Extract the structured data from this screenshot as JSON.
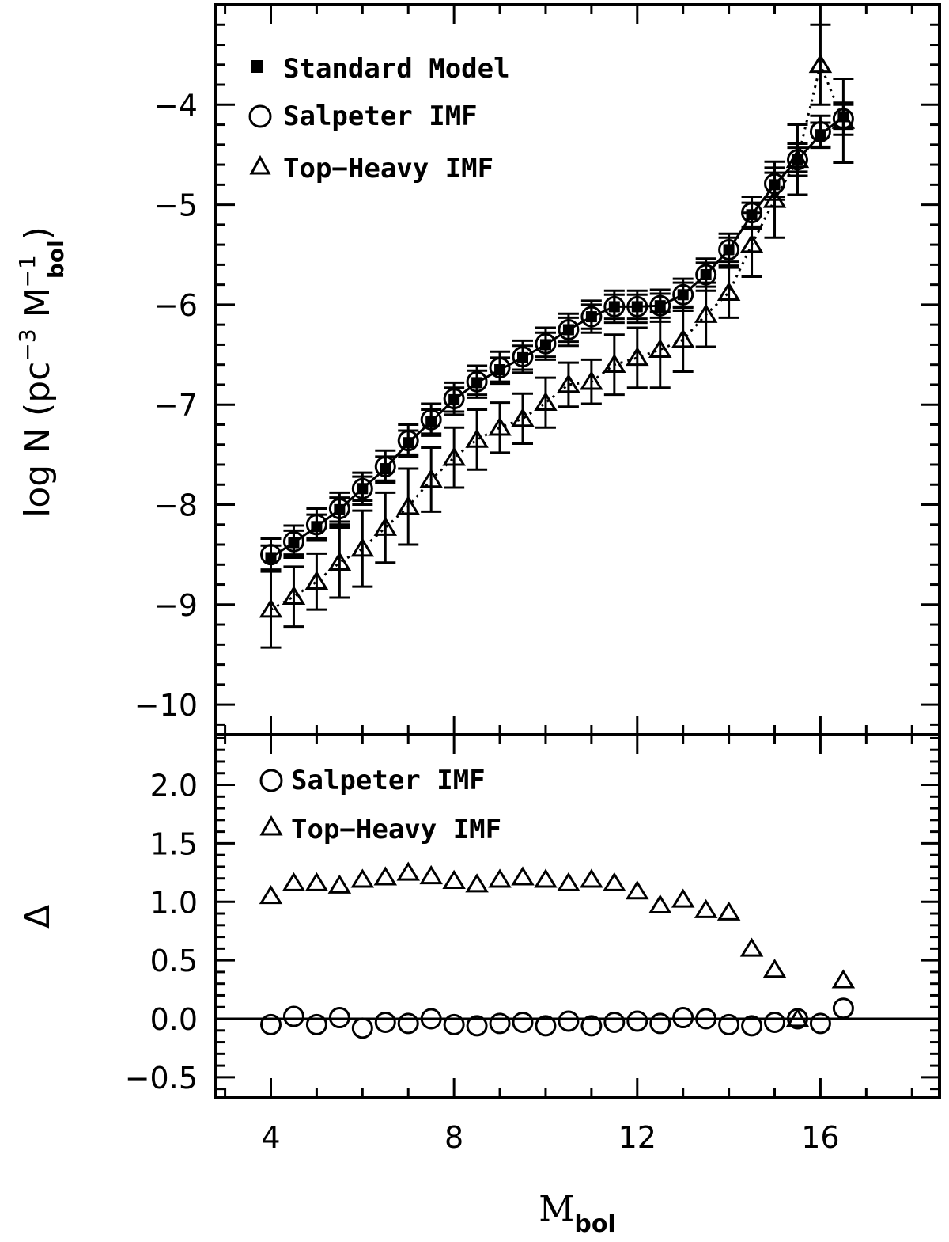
{
  "chart_data": [
    {
      "type": "scatter",
      "panel": "top",
      "title": "",
      "xlabel": "M",
      "xlabel_sub": "bol",
      "ylabel": "log N (pc",
      "ylabel_sup1": "−3",
      "ylabel_mid": " M",
      "ylabel_sup2": "−1",
      "ylabel_sub": "bol",
      "ylabel_end": ")",
      "xlim": [
        2.8,
        18.6
      ],
      "ylim": [
        -10.3,
        -3.0
      ],
      "x_ticks": [
        4,
        8,
        12,
        16
      ],
      "x_tick_labels": [
        "4",
        "8",
        "12",
        "16"
      ],
      "y_ticks": [
        -10,
        -9,
        -8,
        -7,
        -6,
        -5,
        -4
      ],
      "y_tick_labels": [
        "−10",
        "−9",
        "−8",
        "−7",
        "−6",
        "−5",
        "−4"
      ],
      "legend_position": "top-left",
      "legend": [
        "Standard Model",
        "Salpeter IMF",
        "Top−Heavy IMF"
      ],
      "x": [
        4.0,
        4.5,
        5.0,
        5.5,
        6.0,
        6.5,
        7.0,
        7.5,
        8.0,
        8.5,
        9.0,
        9.5,
        10.0,
        10.5,
        11.0,
        11.5,
        12.0,
        12.5,
        13.0,
        13.5,
        14.0,
        14.5,
        15.0,
        15.5,
        16.0,
        16.5
      ],
      "series": [
        {
          "name": "Standard Model",
          "marker": "filled-square",
          "line": "solid",
          "values": [
            -8.53,
            -8.38,
            -8.22,
            -8.05,
            -7.84,
            -7.64,
            -7.38,
            -7.17,
            -6.95,
            -6.78,
            -6.65,
            -6.53,
            -6.4,
            -6.25,
            -6.12,
            -6.02,
            -6.02,
            -6.01,
            -5.9,
            -5.7,
            -5.45,
            -5.1,
            -4.8,
            -4.55,
            -4.3,
            -4.12
          ],
          "err": [
            0.12,
            0.12,
            0.12,
            0.12,
            0.12,
            0.12,
            0.12,
            0.12,
            0.12,
            0.12,
            0.12,
            0.12,
            0.12,
            0.12,
            0.12,
            0.12,
            0.12,
            0.12,
            0.12,
            0.12,
            0.12,
            0.12,
            0.12,
            0.12,
            0.12,
            0.12
          ]
        },
        {
          "name": "Salpeter IMF",
          "marker": "open-circle",
          "line": "none",
          "values": [
            -8.5,
            -8.37,
            -8.2,
            -8.04,
            -7.84,
            -7.62,
            -7.36,
            -7.15,
            -6.94,
            -6.77,
            -6.63,
            -6.52,
            -6.39,
            -6.25,
            -6.12,
            -6.02,
            -6.02,
            -6.01,
            -5.9,
            -5.7,
            -5.45,
            -5.08,
            -4.79,
            -4.55,
            -4.27,
            -4.14
          ],
          "err": [
            0.16,
            0.16,
            0.16,
            0.16,
            0.16,
            0.16,
            0.16,
            0.16,
            0.16,
            0.16,
            0.16,
            0.16,
            0.16,
            0.16,
            0.16,
            0.16,
            0.16,
            0.16,
            0.16,
            0.16,
            0.16,
            0.16,
            0.16,
            0.16,
            0.16,
            0.16
          ]
        },
        {
          "name": "Top−Heavy IMF",
          "marker": "open-triangle",
          "line": "dotted",
          "values": [
            -9.05,
            -8.92,
            -8.77,
            -8.58,
            -8.44,
            -8.23,
            -8.02,
            -7.75,
            -7.53,
            -7.35,
            -7.23,
            -7.14,
            -6.98,
            -6.8,
            -6.77,
            -6.6,
            -6.53,
            -6.45,
            -6.35,
            -6.1,
            -5.88,
            -5.4,
            -4.95,
            -4.55,
            -3.6,
            -4.16
          ],
          "err": [
            0.38,
            0.3,
            0.28,
            0.35,
            0.38,
            0.35,
            0.38,
            0.32,
            0.3,
            0.3,
            0.25,
            0.25,
            0.25,
            0.22,
            0.22,
            0.3,
            0.3,
            0.38,
            0.32,
            0.32,
            0.25,
            0.32,
            0.38,
            0.35,
            0.4,
            0.42
          ]
        }
      ]
    },
    {
      "type": "scatter",
      "panel": "bottom",
      "title": "",
      "xlabel": "M",
      "xlabel_sub": "bol",
      "ylabel": "Δ",
      "xlim": [
        2.8,
        18.6
      ],
      "ylim": [
        -0.67,
        2.43
      ],
      "x_ticks": [
        4,
        8,
        12,
        16
      ],
      "x_tick_labels": [
        "4",
        "8",
        "12",
        "16"
      ],
      "y_ticks": [
        -0.5,
        0.0,
        0.5,
        1.0,
        1.5,
        2.0
      ],
      "y_tick_labels": [
        "−0.5",
        "0.0",
        "0.5",
        "1.0",
        "1.5",
        "2.0"
      ],
      "reference_line_y": 0.0,
      "legend_position": "top-left",
      "legend": [
        "Salpeter IMF",
        "Top−Heavy IMF"
      ],
      "x": [
        4.0,
        4.5,
        5.0,
        5.5,
        6.0,
        6.5,
        7.0,
        7.5,
        8.0,
        8.5,
        9.0,
        9.5,
        10.0,
        10.5,
        11.0,
        11.5,
        12.0,
        12.5,
        13.0,
        13.5,
        14.0,
        14.5,
        15.0,
        15.5,
        16.0,
        16.5
      ],
      "series": [
        {
          "name": "Salpeter IMF",
          "marker": "open-circle",
          "values": [
            -0.05,
            0.02,
            -0.05,
            0.01,
            -0.08,
            -0.03,
            -0.04,
            0.0,
            -0.05,
            -0.06,
            -0.04,
            -0.03,
            -0.06,
            -0.02,
            -0.06,
            -0.03,
            -0.02,
            -0.04,
            0.01,
            0.0,
            -0.05,
            -0.06,
            -0.03,
            0.0,
            -0.04,
            0.09
          ]
        },
        {
          "name": "Top−Heavy IMF",
          "marker": "open-triangle",
          "values": [
            1.05,
            1.16,
            1.16,
            1.14,
            1.19,
            1.21,
            1.25,
            1.22,
            1.18,
            1.15,
            1.19,
            1.21,
            1.19,
            1.16,
            1.19,
            1.16,
            1.09,
            0.97,
            1.02,
            0.93,
            0.91,
            0.6,
            0.42,
            0.0,
            null,
            0.33
          ]
        }
      ]
    }
  ]
}
